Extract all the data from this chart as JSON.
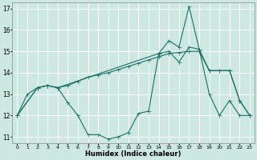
{
  "xlabel": "Humidex (Indice chaleur)",
  "xlim": [
    -0.5,
    23.5
  ],
  "ylim": [
    10.7,
    17.3
  ],
  "yticks": [
    11,
    12,
    13,
    14,
    15,
    16,
    17
  ],
  "xticks": [
    0,
    1,
    2,
    3,
    4,
    5,
    6,
    7,
    8,
    9,
    10,
    11,
    12,
    13,
    14,
    15,
    16,
    17,
    18,
    19,
    20,
    21,
    22,
    23
  ],
  "background_color": "#cce8e0",
  "grid_color": "#ffffff",
  "line_color": "#1a7068",
  "line1_x": [
    0,
    1,
    2,
    3,
    4,
    5,
    6,
    7,
    8,
    9,
    10,
    11,
    12,
    13,
    14,
    15,
    16,
    17,
    18,
    19,
    20,
    21,
    22,
    23
  ],
  "line1_y": [
    12,
    13,
    13.3,
    13.4,
    13.3,
    12.6,
    12.0,
    11.1,
    11.1,
    10.9,
    11.0,
    11.2,
    12.1,
    12.2,
    14.9,
    15.5,
    15.2,
    17.1,
    15.1,
    13.0,
    12.0,
    12.7,
    12.0,
    12.0
  ],
  "line2_x": [
    0,
    2,
    3,
    4,
    14,
    15,
    16,
    17,
    18,
    19,
    20,
    21,
    22,
    23
  ],
  "line2_y": [
    12,
    13.3,
    13.4,
    13.3,
    14.9,
    15.0,
    14.5,
    15.2,
    15.1,
    14.1,
    14.1,
    14.1,
    12.7,
    12.0
  ],
  "line3_x": [
    0,
    2,
    3,
    4,
    5,
    6,
    7,
    8,
    9,
    10,
    11,
    12,
    13,
    14,
    15,
    16,
    17,
    18,
    19,
    20,
    21,
    22,
    23
  ],
  "line3_y": [
    12,
    13.3,
    13.4,
    13.3,
    13.4,
    13.6,
    13.8,
    13.9,
    14.0,
    14.15,
    14.3,
    14.45,
    14.6,
    14.75,
    14.9,
    14.95,
    15.0,
    15.0,
    14.1,
    14.1,
    14.1,
    12.7,
    12.0
  ]
}
